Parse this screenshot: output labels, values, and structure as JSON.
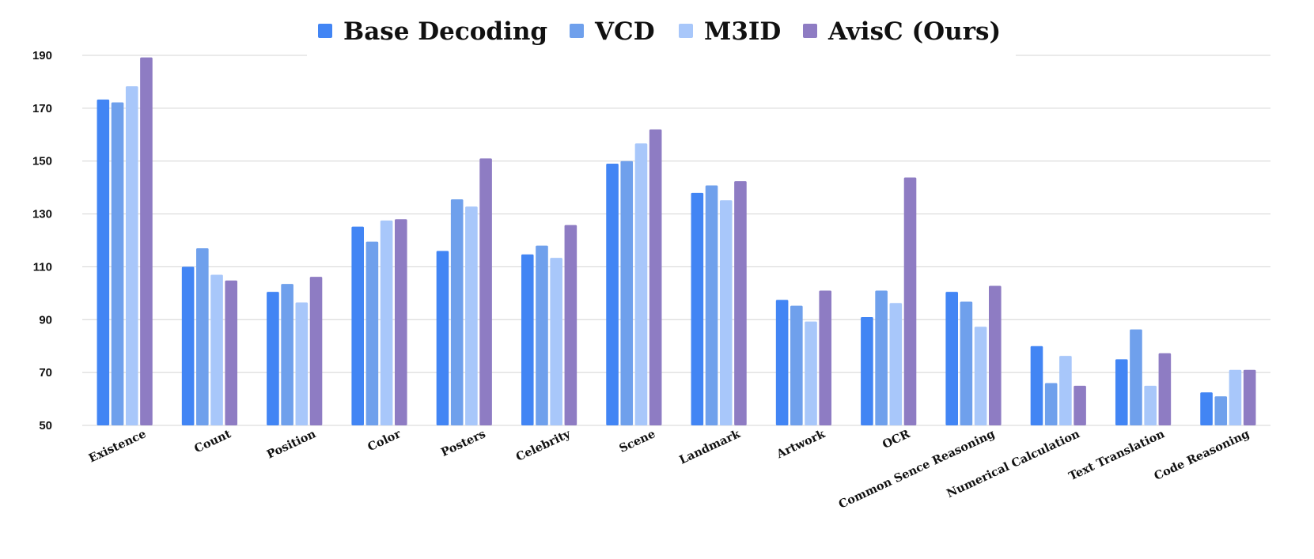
{
  "chart_data": {
    "type": "bar",
    "title": "",
    "xlabel": "",
    "ylabel": "",
    "ylim": [
      50,
      190
    ],
    "yticks": [
      50,
      70,
      90,
      110,
      130,
      150,
      170,
      190
    ],
    "grid": true,
    "legend_position": "top-center",
    "categories": [
      "Existence",
      "Count",
      "Position",
      "Color",
      "Posters",
      "Celebrity",
      "Scene",
      "Landmark",
      "Artwork",
      "OCR",
      "Common Sence Reasoning",
      "Numerical Calculation",
      "Text Translation",
      "Code Reasoning"
    ],
    "series": [
      {
        "name": "Base Decoding",
        "color": "#4285f4",
        "values": [
          173.3,
          110,
          100.5,
          125.2,
          116,
          114.7,
          149,
          138,
          97.5,
          91,
          100.5,
          80,
          75,
          62.5
        ]
      },
      {
        "name": "VCD",
        "color": "#6fa0ec",
        "values": [
          172.2,
          117,
          103.5,
          119.5,
          135.5,
          118,
          150,
          140.8,
          95.3,
          101,
          96.8,
          66,
          86.3,
          61
        ]
      },
      {
        "name": "M3ID",
        "color": "#a8c7fa",
        "values": [
          178.3,
          107,
          96.5,
          127.5,
          132.8,
          113.4,
          156.7,
          135.2,
          89.3,
          96.3,
          87.3,
          76.3,
          65,
          71
        ]
      },
      {
        "name": "AvisC (Ours)",
        "color": "#8e7cc3",
        "values": [
          189.2,
          104.8,
          106.2,
          128,
          151,
          125.8,
          162,
          142.4,
          101,
          143.8,
          102.8,
          65,
          77.3,
          71
        ]
      }
    ]
  }
}
